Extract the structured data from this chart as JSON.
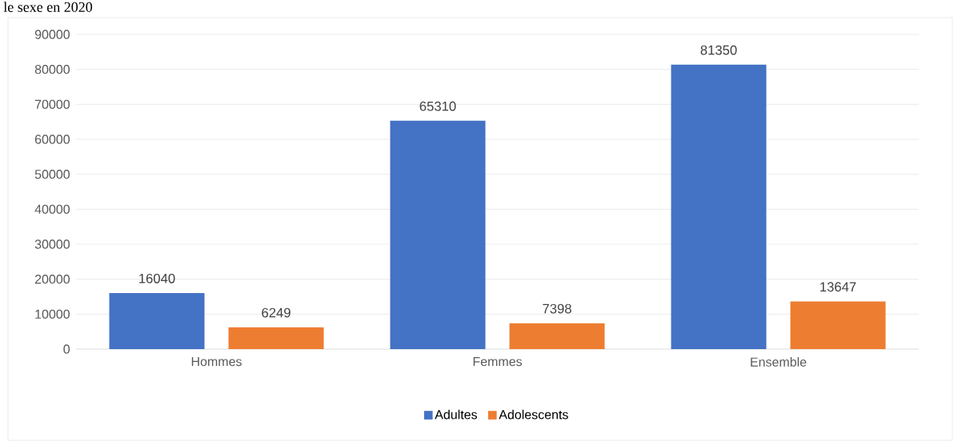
{
  "chart_data": {
    "type": "bar",
    "title": "le sexe en 2020",
    "categories": [
      "Hommes",
      "Femmes",
      "Ensemble"
    ],
    "series": [
      {
        "name": "Adultes",
        "color": "#4472c4",
        "values": [
          16040,
          65310,
          81350
        ]
      },
      {
        "name": "Adolescents",
        "color": "#ed7d31",
        "values": [
          6249,
          7398,
          13647
        ]
      }
    ],
    "ylim": [
      0,
      90000
    ],
    "yticks": [
      0,
      10000,
      20000,
      30000,
      40000,
      50000,
      60000,
      70000,
      80000,
      90000
    ],
    "grid": "y",
    "legend": "bottom",
    "data_labels": true
  }
}
